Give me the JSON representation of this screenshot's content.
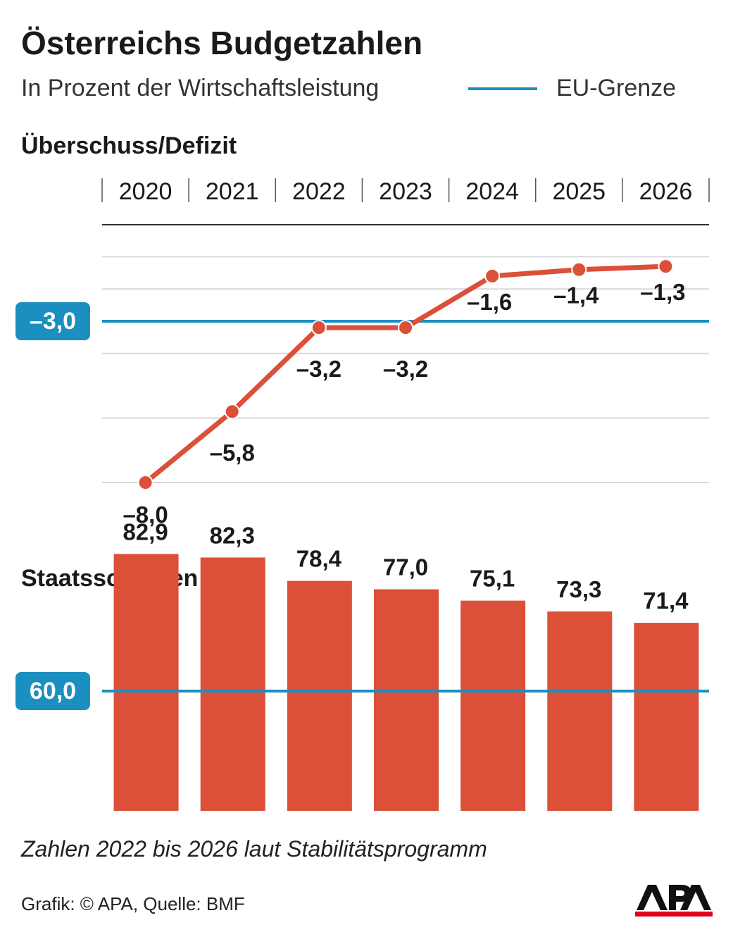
{
  "title": "Österreichs Budgetzahlen",
  "subtitle": "In Prozent der Wirtschaftsleistung",
  "legend": {
    "label": "EU-Grenze",
    "color": "#1b8fbf"
  },
  "note": "Zahlen 2022 bis 2026 laut Stabilitätsprogramm",
  "source": "Grafik: © APA, Quelle: BMF",
  "logo_text": "APA",
  "colors": {
    "series": "#dc4f38",
    "reference": "#1b8fbf",
    "grid": "#d9d9d9"
  },
  "chart_data": [
    {
      "type": "line",
      "title": "Überschuss/Defizit",
      "x": [
        "2020",
        "2021",
        "2022",
        "2023",
        "2024",
        "2025",
        "2026"
      ],
      "values": [
        -8.0,
        -5.8,
        -3.2,
        -3.2,
        -1.6,
        -1.4,
        -1.3
      ],
      "data_labels": [
        "–8,0",
        "–5,8",
        "–3,2",
        "–3,2",
        "–1,6",
        "–1,4",
        "–1,3"
      ],
      "reference": {
        "value": -3.0,
        "label": "–3,0"
      },
      "ylim": [
        -8.5,
        0
      ],
      "grid": true
    },
    {
      "type": "bar",
      "title": "Staatsschulden",
      "categories": [
        "2020",
        "2021",
        "2022",
        "2023",
        "2024",
        "2025",
        "2026"
      ],
      "values": [
        82.9,
        82.3,
        78.4,
        77.0,
        75.1,
        73.3,
        71.4
      ],
      "data_labels": [
        "82,9",
        "82,3",
        "78,4",
        "77,0",
        "75,1",
        "73,3",
        "71,4"
      ],
      "reference": {
        "value": 60.0,
        "label": "60,0"
      },
      "ylim": [
        40,
        82.9
      ]
    }
  ]
}
